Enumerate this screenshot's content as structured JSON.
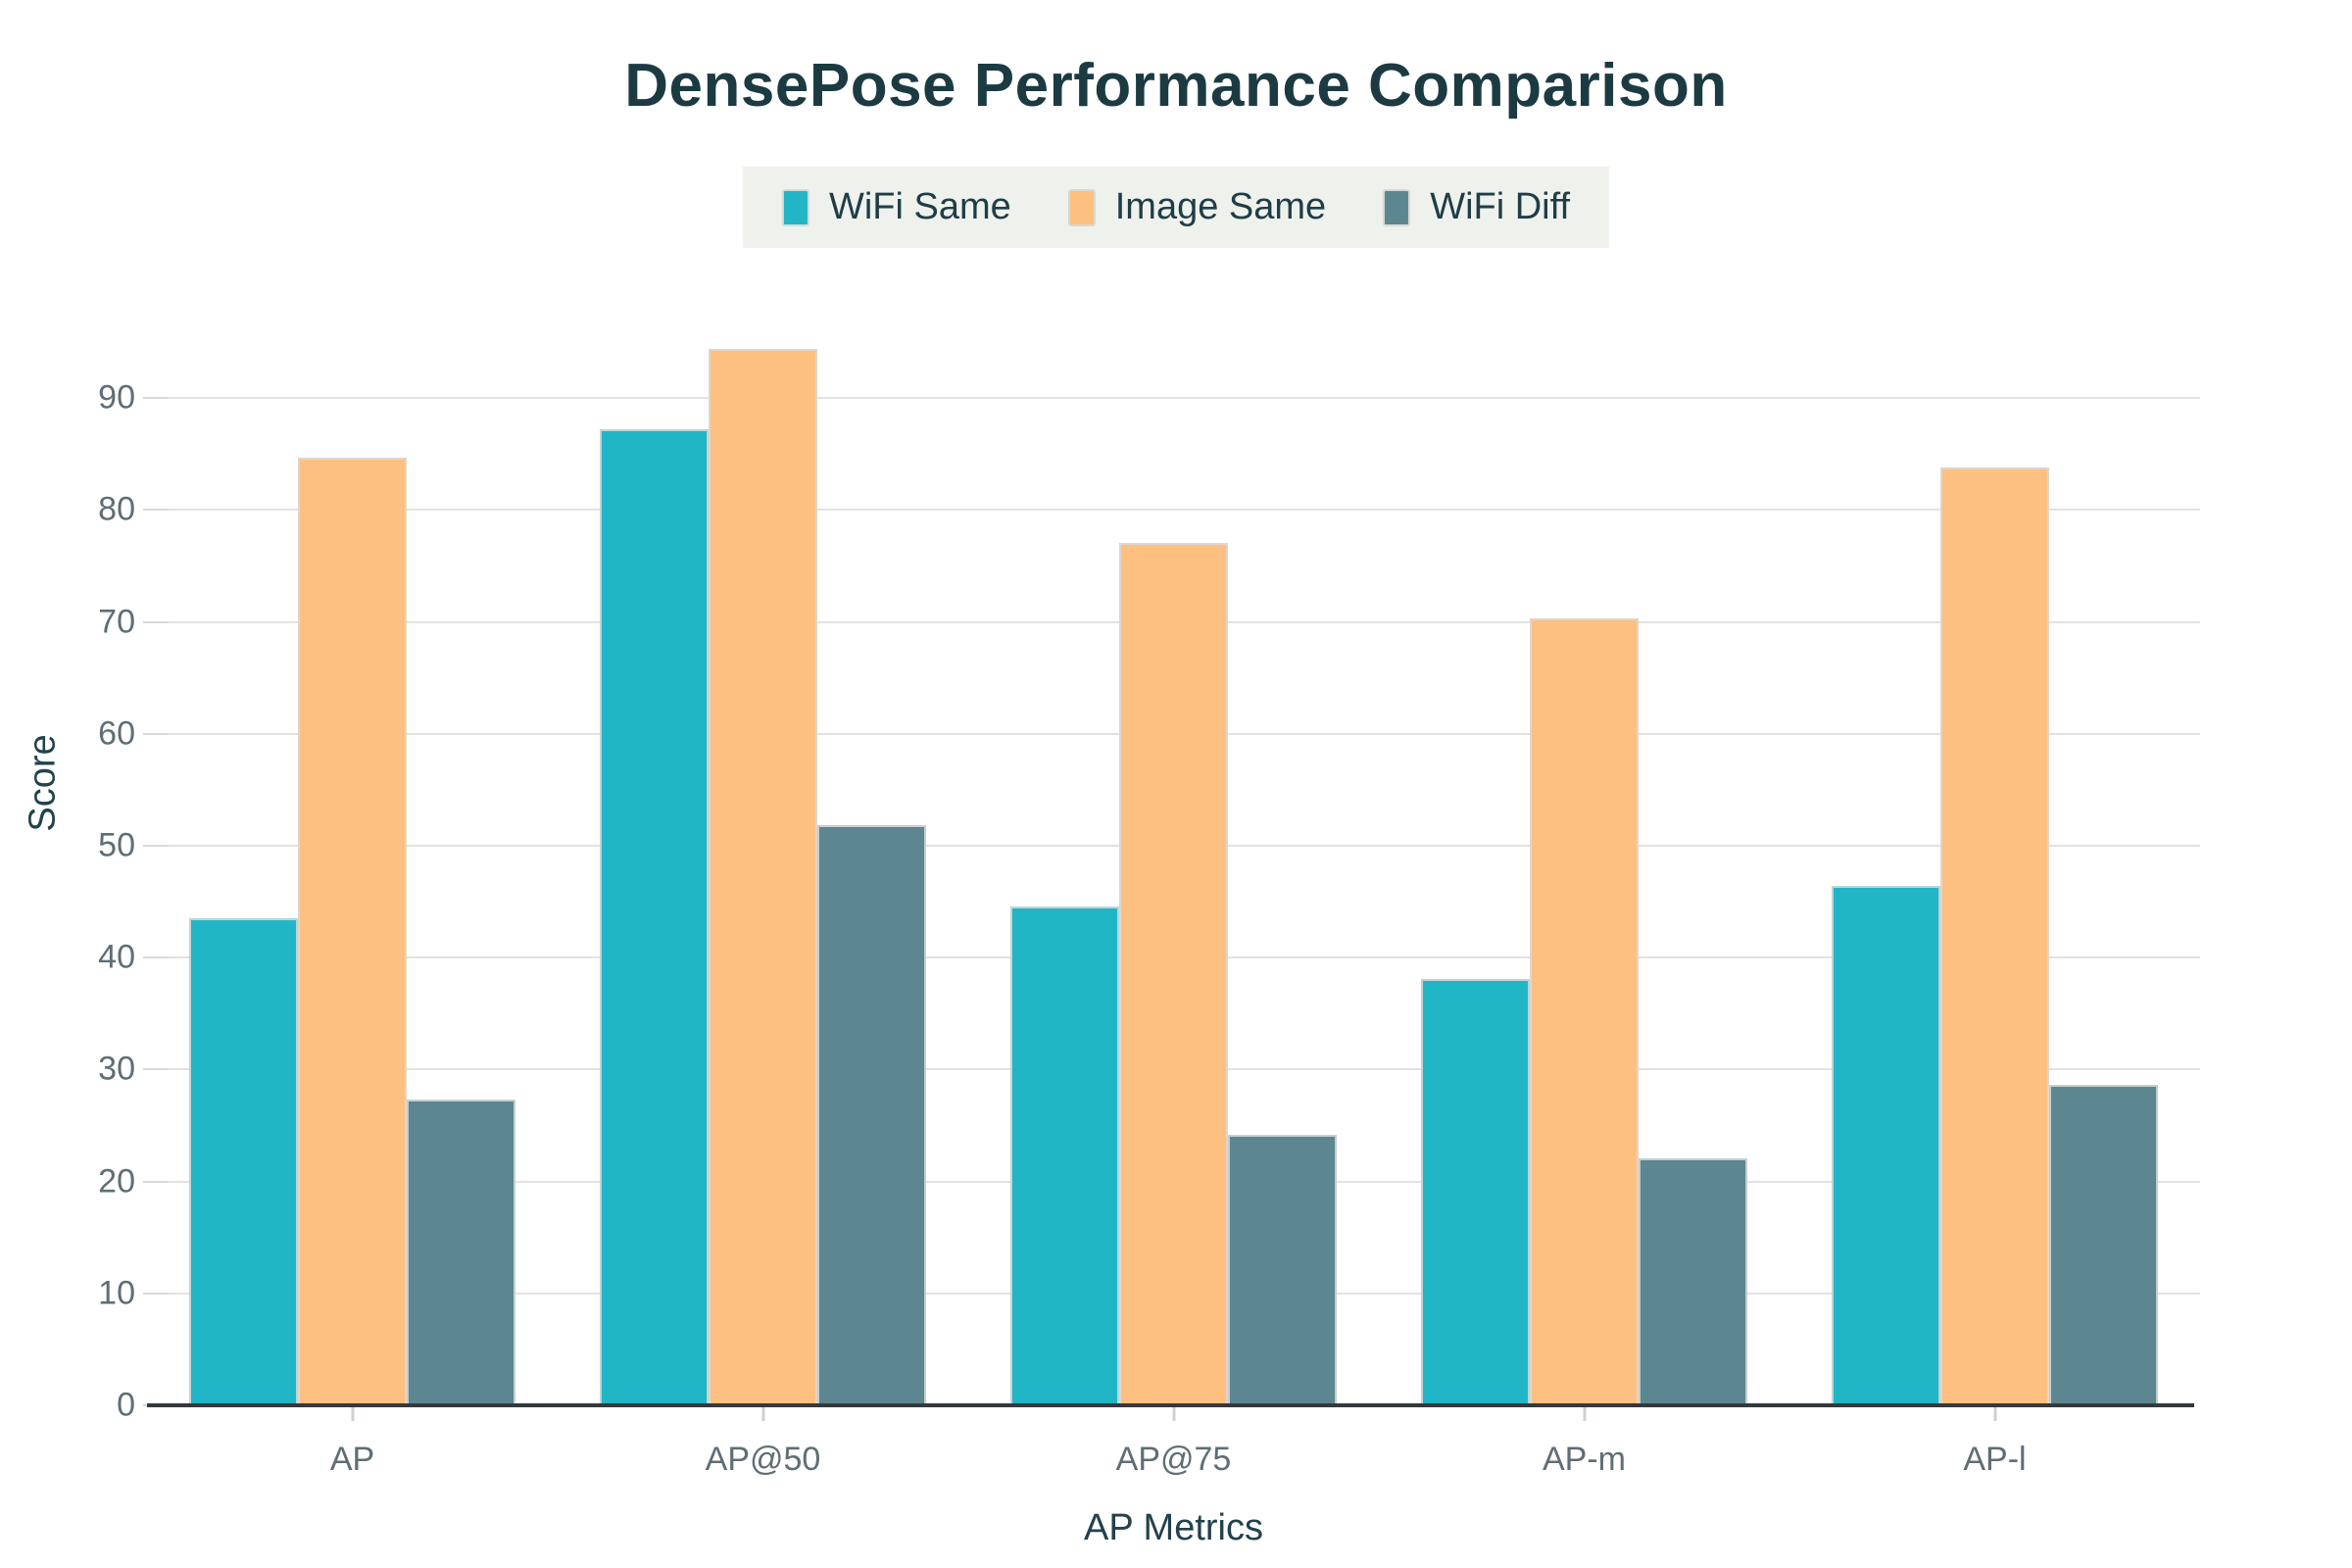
{
  "title": "DensePose Performance Comparison",
  "chart_data": {
    "type": "bar",
    "title": "DensePose Performance Comparison",
    "xlabel": "AP Metrics",
    "ylabel": "Score",
    "categories": [
      "AP",
      "AP@50",
      "AP@75",
      "AP-m",
      "AP-l"
    ],
    "series": [
      {
        "name": "WiFi Same",
        "color": "#21b6c6",
        "values": [
          43.5,
          87.2,
          44.6,
          38.1,
          46.4
        ]
      },
      {
        "name": "Image Same",
        "color": "#fdc080",
        "values": [
          84.7,
          94.4,
          77.1,
          70.3,
          83.8
        ]
      },
      {
        "name": "WiFi Diff",
        "color": "#5c8690",
        "values": [
          27.3,
          51.8,
          24.2,
          22.1,
          28.6
        ]
      }
    ],
    "yticks": [
      0,
      10,
      20,
      30,
      40,
      50,
      60,
      70,
      80,
      90
    ],
    "ylim": [
      0,
      95.8
    ],
    "grid": true,
    "legend_position": "top"
  },
  "colors": {
    "background": "#ffffff",
    "title_text": "#1c3a42",
    "axis_title_text": "#22424c",
    "tick_text": "#5f6e74",
    "gridline": "#e2e2e2",
    "axis_line": "#35393c",
    "legend_background": "#eef1ec",
    "legend_text": "#1f3d46"
  }
}
